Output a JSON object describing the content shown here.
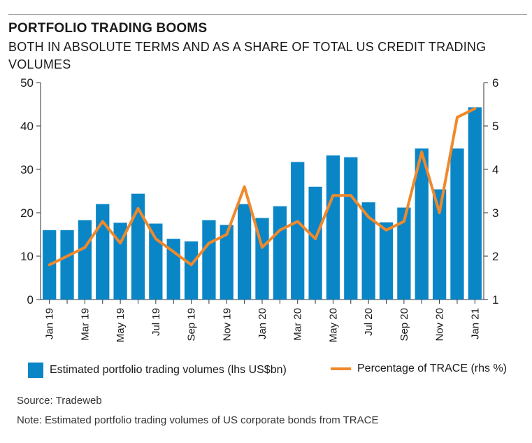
{
  "header": {
    "title": "PORTFOLIO TRADING BOOMS",
    "subtitle": "BOTH IN ABSOLUTE TERMS AND AS A SHARE OF TOTAL US CREDIT TRADING VOLUMES"
  },
  "colors": {
    "bar": "#0a86c7",
    "line": "#f0892b",
    "axis": "#333333"
  },
  "chart_data": {
    "type": "bar",
    "title": "PORTFOLIO TRADING BOOMS",
    "subtitle": "BOTH IN ABSOLUTE TERMS AND AS A SHARE OF TOTAL US CREDIT TRADING VOLUMES",
    "categories": [
      "Jan 19",
      "Feb 19",
      "Mar 19",
      "Apr 19",
      "May 19",
      "Jun 19",
      "Jul 19",
      "Aug 19",
      "Sep 19",
      "Oct 19",
      "Nov 19",
      "Dec 19",
      "Jan 20",
      "Feb 20",
      "Mar 20",
      "Apr 20",
      "May 20",
      "Jun 20",
      "Jul 20",
      "Aug 20",
      "Sep 20",
      "Oct 20",
      "Nov 20",
      "Dec 20",
      "Jan 21"
    ],
    "tick_labels": [
      "Jan 19",
      "",
      "Mar 19",
      "",
      "May 19",
      "",
      "Jul 19",
      "",
      "Sep 19",
      "",
      "Nov 19",
      "",
      "Jan 20",
      "",
      "Mar 20",
      "",
      "May 20",
      "",
      "Jul 20",
      "",
      "Sep 20",
      "",
      "Nov 20",
      "",
      "Jan 21"
    ],
    "series": [
      {
        "name": "Estimated portfolio trading volumes (lhs US$bn)",
        "type": "bar",
        "axis": "left",
        "values": [
          16,
          16,
          18.3,
          22,
          17.7,
          24.4,
          17.5,
          14,
          13.4,
          18.3,
          17.2,
          22,
          18.8,
          21.5,
          31.7,
          26,
          33.2,
          32.8,
          22.4,
          17.8,
          21.2,
          34.8,
          25.4,
          34.8,
          44.3
        ]
      },
      {
        "name": "Percentage of TRACE (rhs %)",
        "type": "line",
        "axis": "right",
        "values": [
          1.8,
          2.0,
          2.2,
          2.8,
          2.3,
          3.1,
          2.4,
          2.1,
          1.8,
          2.3,
          2.5,
          3.6,
          2.2,
          2.6,
          2.8,
          2.4,
          3.4,
          3.4,
          2.9,
          2.6,
          2.8,
          4.4,
          3.0,
          5.2,
          5.4
        ]
      }
    ],
    "ylim_left": [
      0,
      50
    ],
    "ylim_right": [
      1,
      6
    ],
    "yticks_left": [
      "0",
      "10",
      "20",
      "30",
      "40",
      "50"
    ],
    "yticks_right": [
      "1",
      "2",
      "3",
      "4",
      "5",
      "6"
    ],
    "legend_position": "bottom",
    "grid": false
  },
  "footer": {
    "source": "Source: Tradeweb",
    "note": "Note: Estimated portfolio trading volumes of US corporate bonds from TRACE"
  }
}
